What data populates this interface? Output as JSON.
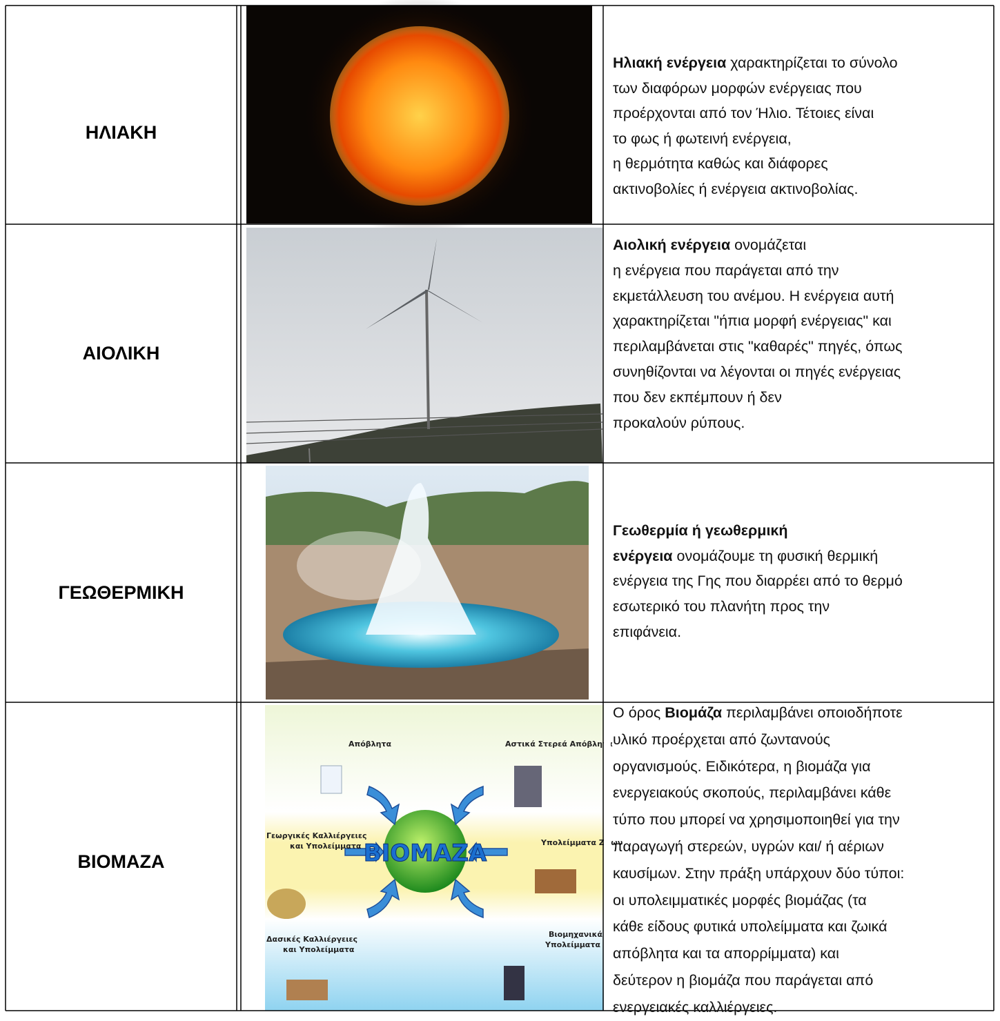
{
  "rows": [
    {
      "label": "ΗΛΙΑΚΗ",
      "description": [
        [
          {
            "text": "Ηλιακή ενέργεια",
            "bold": true
          },
          {
            "text": " χαρακτηρίζεται το σύνολο"
          }
        ],
        [
          {
            "text": "των διαφόρων μορφών ενέργειας που"
          }
        ],
        [
          {
            "text": "προέρχονται από τον Ήλιο. Τέτοιες είναι"
          }
        ],
        [
          {
            "text": "το φως ή φωτεινή ενέργεια,"
          }
        ],
        [
          {
            "text": "η θερμότητα καθώς και διάφορες"
          }
        ],
        [
          {
            "text": "ακτινοβολίες ή ενέργεια ακτινοβολίας."
          }
        ]
      ]
    },
    {
      "label": "ΑΙΟΛΙΚΗ",
      "description": [
        [
          {
            "text": "Αιολική ενέργεια",
            "bold": true
          },
          {
            "text": " ονομάζεται"
          }
        ],
        [
          {
            "text": "η ενέργεια που παράγεται από την"
          }
        ],
        [
          {
            "text": "εκμετάλλευση του ανέμου. Η ενέργεια αυτή"
          }
        ],
        [
          {
            "text": "χαρακτηρίζεται \"ήπια μορφή ενέργειας\" και"
          }
        ],
        [
          {
            "text": "περιλαμβάνεται στις \"καθαρές\" πηγές, όπως"
          }
        ],
        [
          {
            "text": "συνηθίζονται να λέγονται οι πηγές ενέργειας"
          }
        ],
        [
          {
            "text": "που δεν εκπέμπουν ή δεν"
          }
        ],
        [
          {
            "text": "προκαλούν ρύπους."
          }
        ]
      ]
    },
    {
      "label": "ΓΕΩΘΕΡΜΙΚΗ",
      "description": [
        [
          {
            "text": "Γεωθερμία ή γεωθερμική",
            "bold": true
          }
        ],
        [
          {
            "text": "ενέργεια",
            "bold": true
          },
          {
            "text": " ονομάζουμε τη φυσική θερμική"
          }
        ],
        [
          {
            "text": "ενέργεια της Γης που διαρρέει από το θερμό"
          }
        ],
        [
          {
            "text": "εσωτερικό του πλανήτη προς την"
          }
        ],
        [
          {
            "text": "επιφάνεια."
          }
        ]
      ]
    },
    {
      "label": "ΒΙΟΜΑΖΑ",
      "description": [
        [
          {
            "text": "Ο όρος "
          },
          {
            "text": "Βιομάζα",
            "bold": true
          },
          {
            "text": " περιλαμβάνει οποιοδήποτε"
          }
        ],
        [
          {
            "text": "υλικό προέρχεται από ζωντανούς"
          }
        ],
        [
          {
            "text": "οργανισμούς. Ειδικότερα, η βιομάζα για"
          }
        ],
        [
          {
            "text": "ενεργειακούς σκοπούς, περιλαμβάνει κάθε"
          }
        ],
        [
          {
            "text": "τύπο που μπορεί να χρησιμοποιηθεί για την"
          }
        ],
        [
          {
            "text": "παραγωγή στερεών, υγρών και/ ή αέριων"
          }
        ],
        [
          {
            "text": "καυσίμων. Στην πράξη υπάρχουν δύο τύποι:"
          }
        ],
        [
          {
            "text": "οι υπολειμματικές μορφές βιομάζας (τα"
          }
        ],
        [
          {
            "text": "κάθε είδους φυτικά υπολείμματα και ζωικά"
          }
        ],
        [
          {
            "text": "απόβλητα και τα απορρίμματα) και"
          }
        ],
        [
          {
            "text": "δεύτερον η βιομάζα που παράγεται από"
          }
        ],
        [
          {
            "text": "ενεργειακές καλλιέργειες."
          }
        ]
      ]
    }
  ],
  "biomass_diagram": {
    "center": "ΒΙΟΜΑΖΑ",
    "labels": [
      "Απόβλητα",
      "Αστικά Στερεά Απόβλητα",
      "Γεωργικές Καλλιέργειες",
      "και Υπολείμματα",
      "Υπολείμματα Ζώων",
      "Δασικές Καλλιέργειες",
      "και Υπολείμματα",
      "Βιομηχανικά",
      "Υπολείμματα"
    ]
  }
}
